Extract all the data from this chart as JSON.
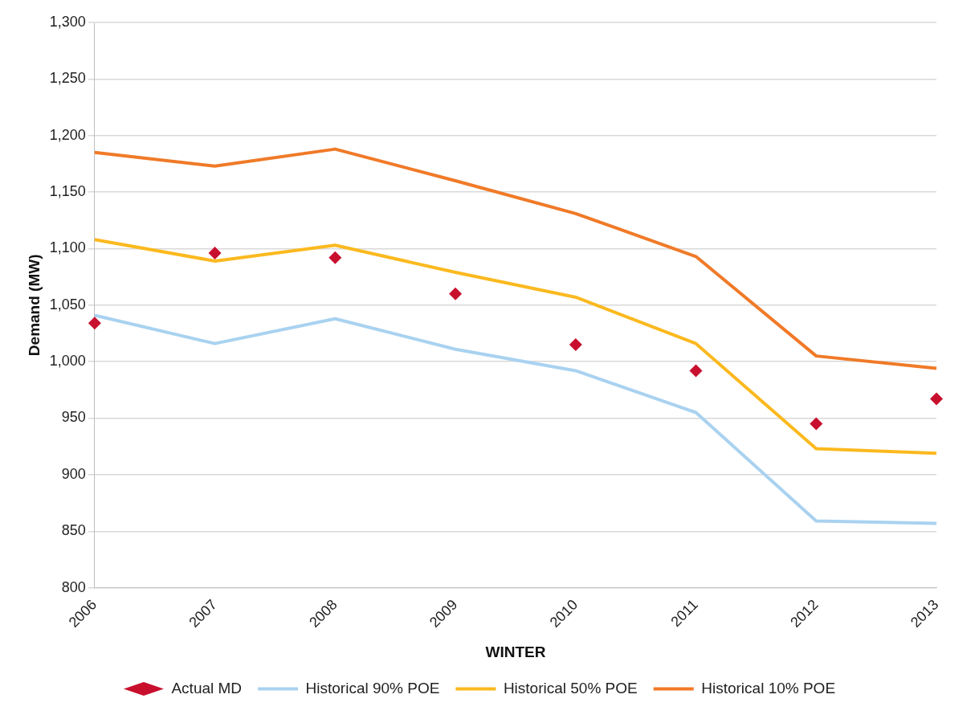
{
  "chart_data": {
    "type": "line",
    "xlabel": "WINTER",
    "ylabel": "Demand (MW)",
    "categories": [
      "2006",
      "2007",
      "2008",
      "2009",
      "2010",
      "2011",
      "2012",
      "2013"
    ],
    "series": [
      {
        "name": "Actual MD",
        "type": "scatter",
        "marker": "diamond",
        "color": "#c8102e",
        "values": [
          1034,
          1096,
          1092,
          1060,
          1015,
          992,
          945,
          967
        ]
      },
      {
        "name": "Historical 90% POE",
        "marker": "none",
        "color": "#a9d2f0",
        "values": [
          1041,
          1016,
          1038,
          1011,
          992,
          955,
          859,
          857
        ]
      },
      {
        "name": "Historical 50% POE",
        "marker": "none",
        "color": "#fbb91f",
        "values": [
          1108,
          1089,
          1103,
          1079,
          1057,
          1016,
          923,
          919
        ]
      },
      {
        "name": "Historical 10% POE",
        "marker": "none",
        "color": "#f07a28",
        "values": [
          1185,
          1173,
          1188,
          1160,
          1131,
          1093,
          1005,
          994
        ]
      }
    ],
    "ylim": [
      800,
      1300
    ],
    "yticks": [
      800,
      850,
      900,
      950,
      {
        "value": 1000,
        "label": "1,000"
      },
      {
        "value": 1050,
        "label": "1,050"
      },
      {
        "value": 1100,
        "label": "1,100"
      },
      {
        "value": 1150,
        "label": "1,150"
      },
      {
        "value": 1200,
        "label": "1,200"
      },
      {
        "value": 1250,
        "label": "1,250"
      },
      {
        "value": 1300,
        "label": "1,300"
      }
    ],
    "grid": "y",
    "legend": "bottom"
  }
}
